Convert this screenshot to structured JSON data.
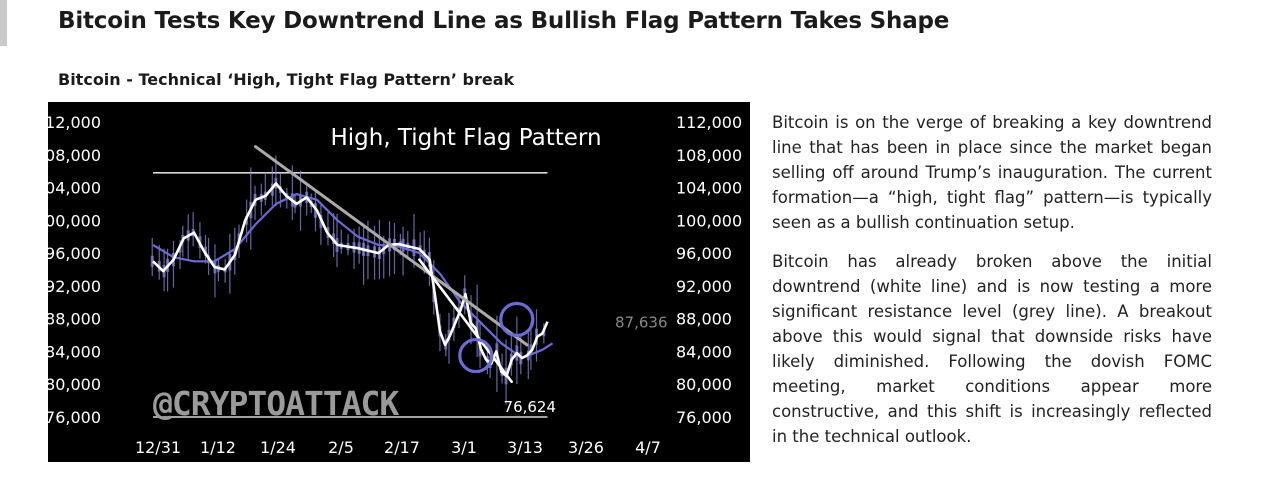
{
  "headline": "Bitcoin Tests Key Downtrend Line as Bullish Flag Pattern Takes Shape",
  "subhead": "Bitcoin - Technical ‘High, Tight Flag Pattern’ break",
  "watermark": "@CRYPTOATTACK",
  "article": {
    "paragraphs": [
      "Bitcoin is on the verge of breaking a key downtrend line that has been in place since the market began selling off around Trump’s inauguration. The current formation—a “high, tight flag” pattern—is typically seen as a bullish continuation setup.",
      "Bitcoin has already broken above the initial downtrend (white line) and is now testing a more significant resistance level (grey line). A breakout above this would signal that downside risks have likely diminished. Following the dovish FOMC meeting, market conditions appear more constructive, and this shift is increasingly reflected in the technical outlook."
    ]
  },
  "colors": {
    "background": "#000000",
    "price": "#ffffff",
    "moving_average": "#6b6bd6",
    "candles": "#8888dd",
    "resistance_line": "#aaaaaa",
    "text": "#ffffff"
  },
  "chart_data": {
    "type": "line",
    "title": "High, Tight Flag Pattern",
    "x_ticks": [
      "12/31",
      "1/12",
      "1/24",
      "2/5",
      "2/17",
      "3/1",
      "3/13",
      "3/26",
      "4/7"
    ],
    "y_ticks": [
      "112,000",
      "108,000",
      "104,000",
      "100,000",
      "96,000",
      "92,000",
      "88,000",
      "84,000",
      "80,000",
      "76,000"
    ],
    "ylim": [
      74000,
      113000
    ],
    "x_range_days": [
      0,
      97
    ],
    "y_axes": [
      "left",
      "right"
    ],
    "series": [
      {
        "values": [
          [
            0,
            95000
          ],
          [
            2,
            93800
          ],
          [
            4,
            95200
          ],
          [
            6,
            97800
          ],
          [
            8,
            98500
          ],
          [
            10,
            96200
          ],
          [
            12,
            94300
          ],
          [
            14,
            94000
          ],
          [
            16,
            95800
          ],
          [
            18,
            100000
          ],
          [
            20,
            102500
          ],
          [
            22,
            103000
          ],
          [
            24,
            104500
          ],
          [
            26,
            103000
          ],
          [
            28,
            102000
          ],
          [
            30,
            102800
          ],
          [
            32,
            101200
          ],
          [
            34,
            98500
          ],
          [
            36,
            97000
          ],
          [
            38,
            96800
          ],
          [
            40,
            96600
          ],
          [
            42,
            96300
          ],
          [
            44,
            96000
          ],
          [
            46,
            97000
          ],
          [
            48,
            97100
          ],
          [
            50,
            96800
          ],
          [
            52,
            96500
          ],
          [
            54,
            95200
          ],
          [
            55,
            91000
          ],
          [
            56,
            86500
          ],
          [
            57,
            84800
          ],
          [
            58,
            86000
          ],
          [
            60,
            89000
          ],
          [
            61,
            91000
          ],
          [
            62,
            87500
          ],
          [
            63,
            86800
          ],
          [
            64,
            84300
          ],
          [
            65,
            83000
          ],
          [
            66,
            82500
          ],
          [
            67,
            84000
          ],
          [
            68,
            81500
          ],
          [
            69,
            81000
          ],
          [
            70,
            83000
          ],
          [
            71,
            83800
          ],
          [
            72,
            83200
          ],
          [
            73,
            83500
          ],
          [
            74,
            84200
          ],
          [
            75,
            85800
          ],
          [
            76,
            86200
          ],
          [
            77,
            87636
          ]
        ]
      },
      {
        "values": [
          [
            0,
            97000
          ],
          [
            4,
            95500
          ],
          [
            8,
            95000
          ],
          [
            12,
            95000
          ],
          [
            16,
            96500
          ],
          [
            20,
            99500
          ],
          [
            24,
            102000
          ],
          [
            28,
            103200
          ],
          [
            32,
            102500
          ],
          [
            36,
            100000
          ],
          [
            40,
            98000
          ],
          [
            44,
            97000
          ],
          [
            48,
            96800
          ],
          [
            52,
            96000
          ],
          [
            56,
            93500
          ],
          [
            60,
            90000
          ],
          [
            64,
            87500
          ],
          [
            68,
            85000
          ],
          [
            72,
            83200
          ],
          [
            76,
            84200
          ],
          [
            78,
            85000
          ]
        ]
      }
    ],
    "annotations": [
      {
        "label": "87,636",
        "x": 77,
        "y": 87636
      },
      {
        "label": "76,624",
        "x": 69,
        "y": 76624
      }
    ],
    "levels": [
      {
        "y": 105800,
        "x": [
          0,
          77
        ]
      },
      {
        "y": 76000,
        "x": [
          0,
          77
        ]
      }
    ],
    "trendlines": [
      {
        "from": [
          20,
          109000
        ],
        "to": [
          73,
          84800
        ]
      },
      {
        "from": [
          52,
          95200
        ],
        "to": [
          70,
          80300
        ]
      }
    ],
    "circles": [
      {
        "x": 63,
        "y": 83500
      },
      {
        "x": 71,
        "y": 87900
      }
    ]
  }
}
